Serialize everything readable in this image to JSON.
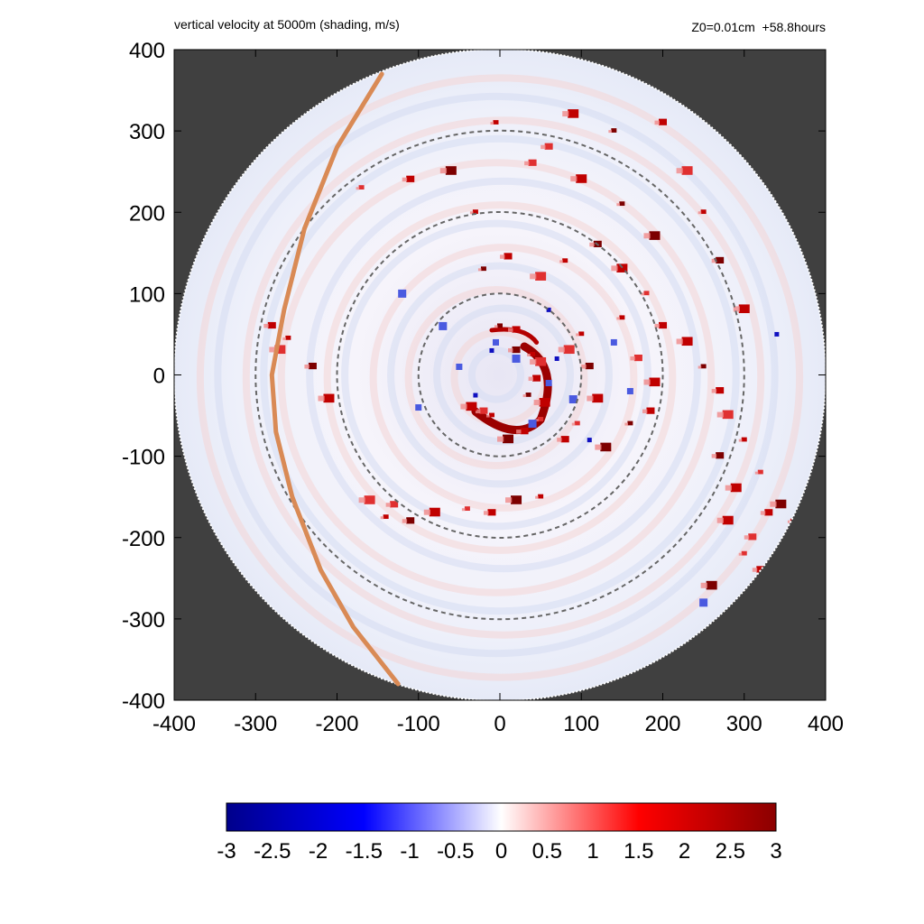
{
  "header": {
    "title": "vertical velocity at 5000m (shading, m/s)",
    "info": "Z0=0.01cm  +58.8hours"
  },
  "chart_data": {
    "type": "heatmap",
    "title": "vertical velocity at 5000m (shading, m/s)",
    "annotation": "Z0=0.01cm  +58.8hours",
    "xlim": [
      -400,
      400
    ],
    "ylim": [
      -400,
      400
    ],
    "x_ticks": [
      "-400",
      "-300",
      "-200",
      "-100",
      "0",
      "100",
      "200",
      "300",
      "400"
    ],
    "y_ticks": [
      "400",
      "300",
      "200",
      "100",
      "0",
      "-100",
      "-200",
      "-300",
      "-400"
    ],
    "domain_radius": 400,
    "background_color": "#404040",
    "reference_circles_radius": [
      100,
      200,
      300
    ],
    "colorbar": {
      "min": -3,
      "max": 3,
      "ticks": [
        "-3",
        "-2.5",
        "-2",
        "-1.5",
        "-1",
        "-0.5",
        "0",
        "0.5",
        "1",
        "1.5",
        "2",
        "2.5",
        "3"
      ],
      "colors": [
        "#00008b",
        "#0000ff",
        "#ffffff",
        "#ff0000",
        "#8b0000"
      ]
    },
    "track_line": {
      "color": "#d98a55",
      "points": [
        [
          -145,
          370
        ],
        [
          -200,
          280
        ],
        [
          -240,
          180
        ],
        [
          -265,
          80
        ],
        [
          -280,
          0
        ],
        [
          -275,
          -70
        ],
        [
          -255,
          -150
        ],
        [
          -220,
          -240
        ],
        [
          -180,
          -310
        ],
        [
          -125,
          -380
        ]
      ]
    },
    "upward_cells": [
      [
        35,
        -25
      ],
      [
        45,
        -5
      ],
      [
        50,
        15
      ],
      [
        40,
        25
      ],
      [
        20,
        30
      ],
      [
        55,
        -35
      ],
      [
        50,
        -55
      ],
      [
        30,
        -70
      ],
      [
        10,
        -80
      ],
      [
        -10,
        -50
      ],
      [
        -20,
        -45
      ],
      [
        -35,
        -40
      ],
      [
        0,
        60
      ],
      [
        20,
        55
      ],
      [
        85,
        30
      ],
      [
        100,
        50
      ],
      [
        110,
        10
      ],
      [
        120,
        -30
      ],
      [
        95,
        -60
      ],
      [
        80,
        -80
      ],
      [
        130,
        -90
      ],
      [
        150,
        70
      ],
      [
        170,
        20
      ],
      [
        190,
        -10
      ],
      [
        160,
        -60
      ],
      [
        185,
        -45
      ],
      [
        -160,
        -155
      ],
      [
        -140,
        -175
      ],
      [
        -110,
        -180
      ],
      [
        -80,
        -170
      ],
      [
        -40,
        -165
      ],
      [
        -10,
        -170
      ],
      [
        20,
        -155
      ],
      [
        50,
        -150
      ],
      [
        -130,
        -160
      ],
      [
        230,
        40
      ],
      [
        250,
        10
      ],
      [
        270,
        -20
      ],
      [
        280,
        -50
      ],
      [
        300,
        -80
      ],
      [
        270,
        -100
      ],
      [
        290,
        -140
      ],
      [
        320,
        -120
      ],
      [
        330,
        -170
      ],
      [
        345,
        -160
      ],
      [
        360,
        -180
      ],
      [
        310,
        -200
      ],
      [
        280,
        -180
      ],
      [
        -20,
        130
      ],
      [
        10,
        145
      ],
      [
        50,
        120
      ],
      [
        80,
        140
      ],
      [
        120,
        160
      ],
      [
        150,
        130
      ],
      [
        180,
        100
      ],
      [
        200,
        60
      ],
      [
        190,
        170
      ],
      [
        -5,
        310
      ],
      [
        60,
        280
      ],
      [
        90,
        320
      ],
      [
        140,
        300
      ],
      [
        200,
        310
      ],
      [
        230,
        250
      ],
      [
        250,
        200
      ],
      [
        270,
        140
      ],
      [
        300,
        80
      ],
      [
        -170,
        230
      ],
      [
        -110,
        240
      ],
      [
        -60,
        250
      ],
      [
        -30,
        200
      ],
      [
        40,
        260
      ],
      [
        100,
        240
      ],
      [
        150,
        210
      ],
      [
        -280,
        60
      ],
      [
        -270,
        30
      ],
      [
        -260,
        45
      ],
      [
        -230,
        10
      ],
      [
        -210,
        -30
      ],
      [
        300,
        -220
      ],
      [
        320,
        -240
      ],
      [
        260,
        -260
      ],
      [
        280,
        -300
      ]
    ],
    "downward_cells": [
      [
        -10,
        30
      ],
      [
        -5,
        40
      ],
      [
        20,
        20
      ],
      [
        70,
        20
      ],
      [
        60,
        -10
      ],
      [
        90,
        -30
      ],
      [
        -30,
        -25
      ],
      [
        -50,
        10
      ],
      [
        40,
        -60
      ],
      [
        110,
        -80
      ],
      [
        140,
        40
      ],
      [
        -70,
        60
      ],
      [
        60,
        80
      ],
      [
        160,
        -20
      ],
      [
        250,
        -280
      ],
      [
        340,
        50
      ],
      [
        -100,
        -40
      ],
      [
        -120,
        100
      ]
    ]
  }
}
